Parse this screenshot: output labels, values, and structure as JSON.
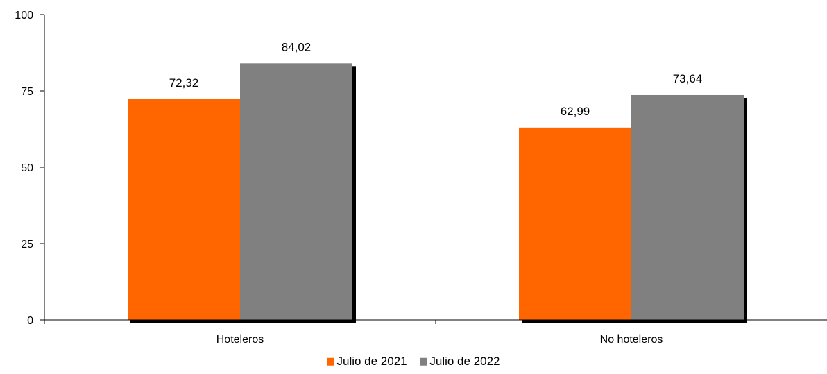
{
  "chart_data": {
    "type": "bar",
    "categories": [
      "Hoteleros",
      "No hoteleros"
    ],
    "series": [
      {
        "name": "Julio de 2021",
        "values": [
          72.32,
          62.99
        ],
        "labels": [
          "72,32",
          "62,99"
        ],
        "color": "#ff6600"
      },
      {
        "name": "Julio de 2022",
        "values": [
          84.02,
          73.64
        ],
        "labels": [
          "84,02",
          "73,64"
        ],
        "color": "#808080"
      }
    ],
    "ylim": [
      0,
      100
    ],
    "yticks": [
      0,
      25,
      50,
      75,
      100
    ],
    "ytick_labels": [
      "0",
      "25",
      "50",
      "75",
      "100"
    ],
    "grid": false,
    "legend_position": "bottom",
    "shadow_color": "#000000"
  }
}
